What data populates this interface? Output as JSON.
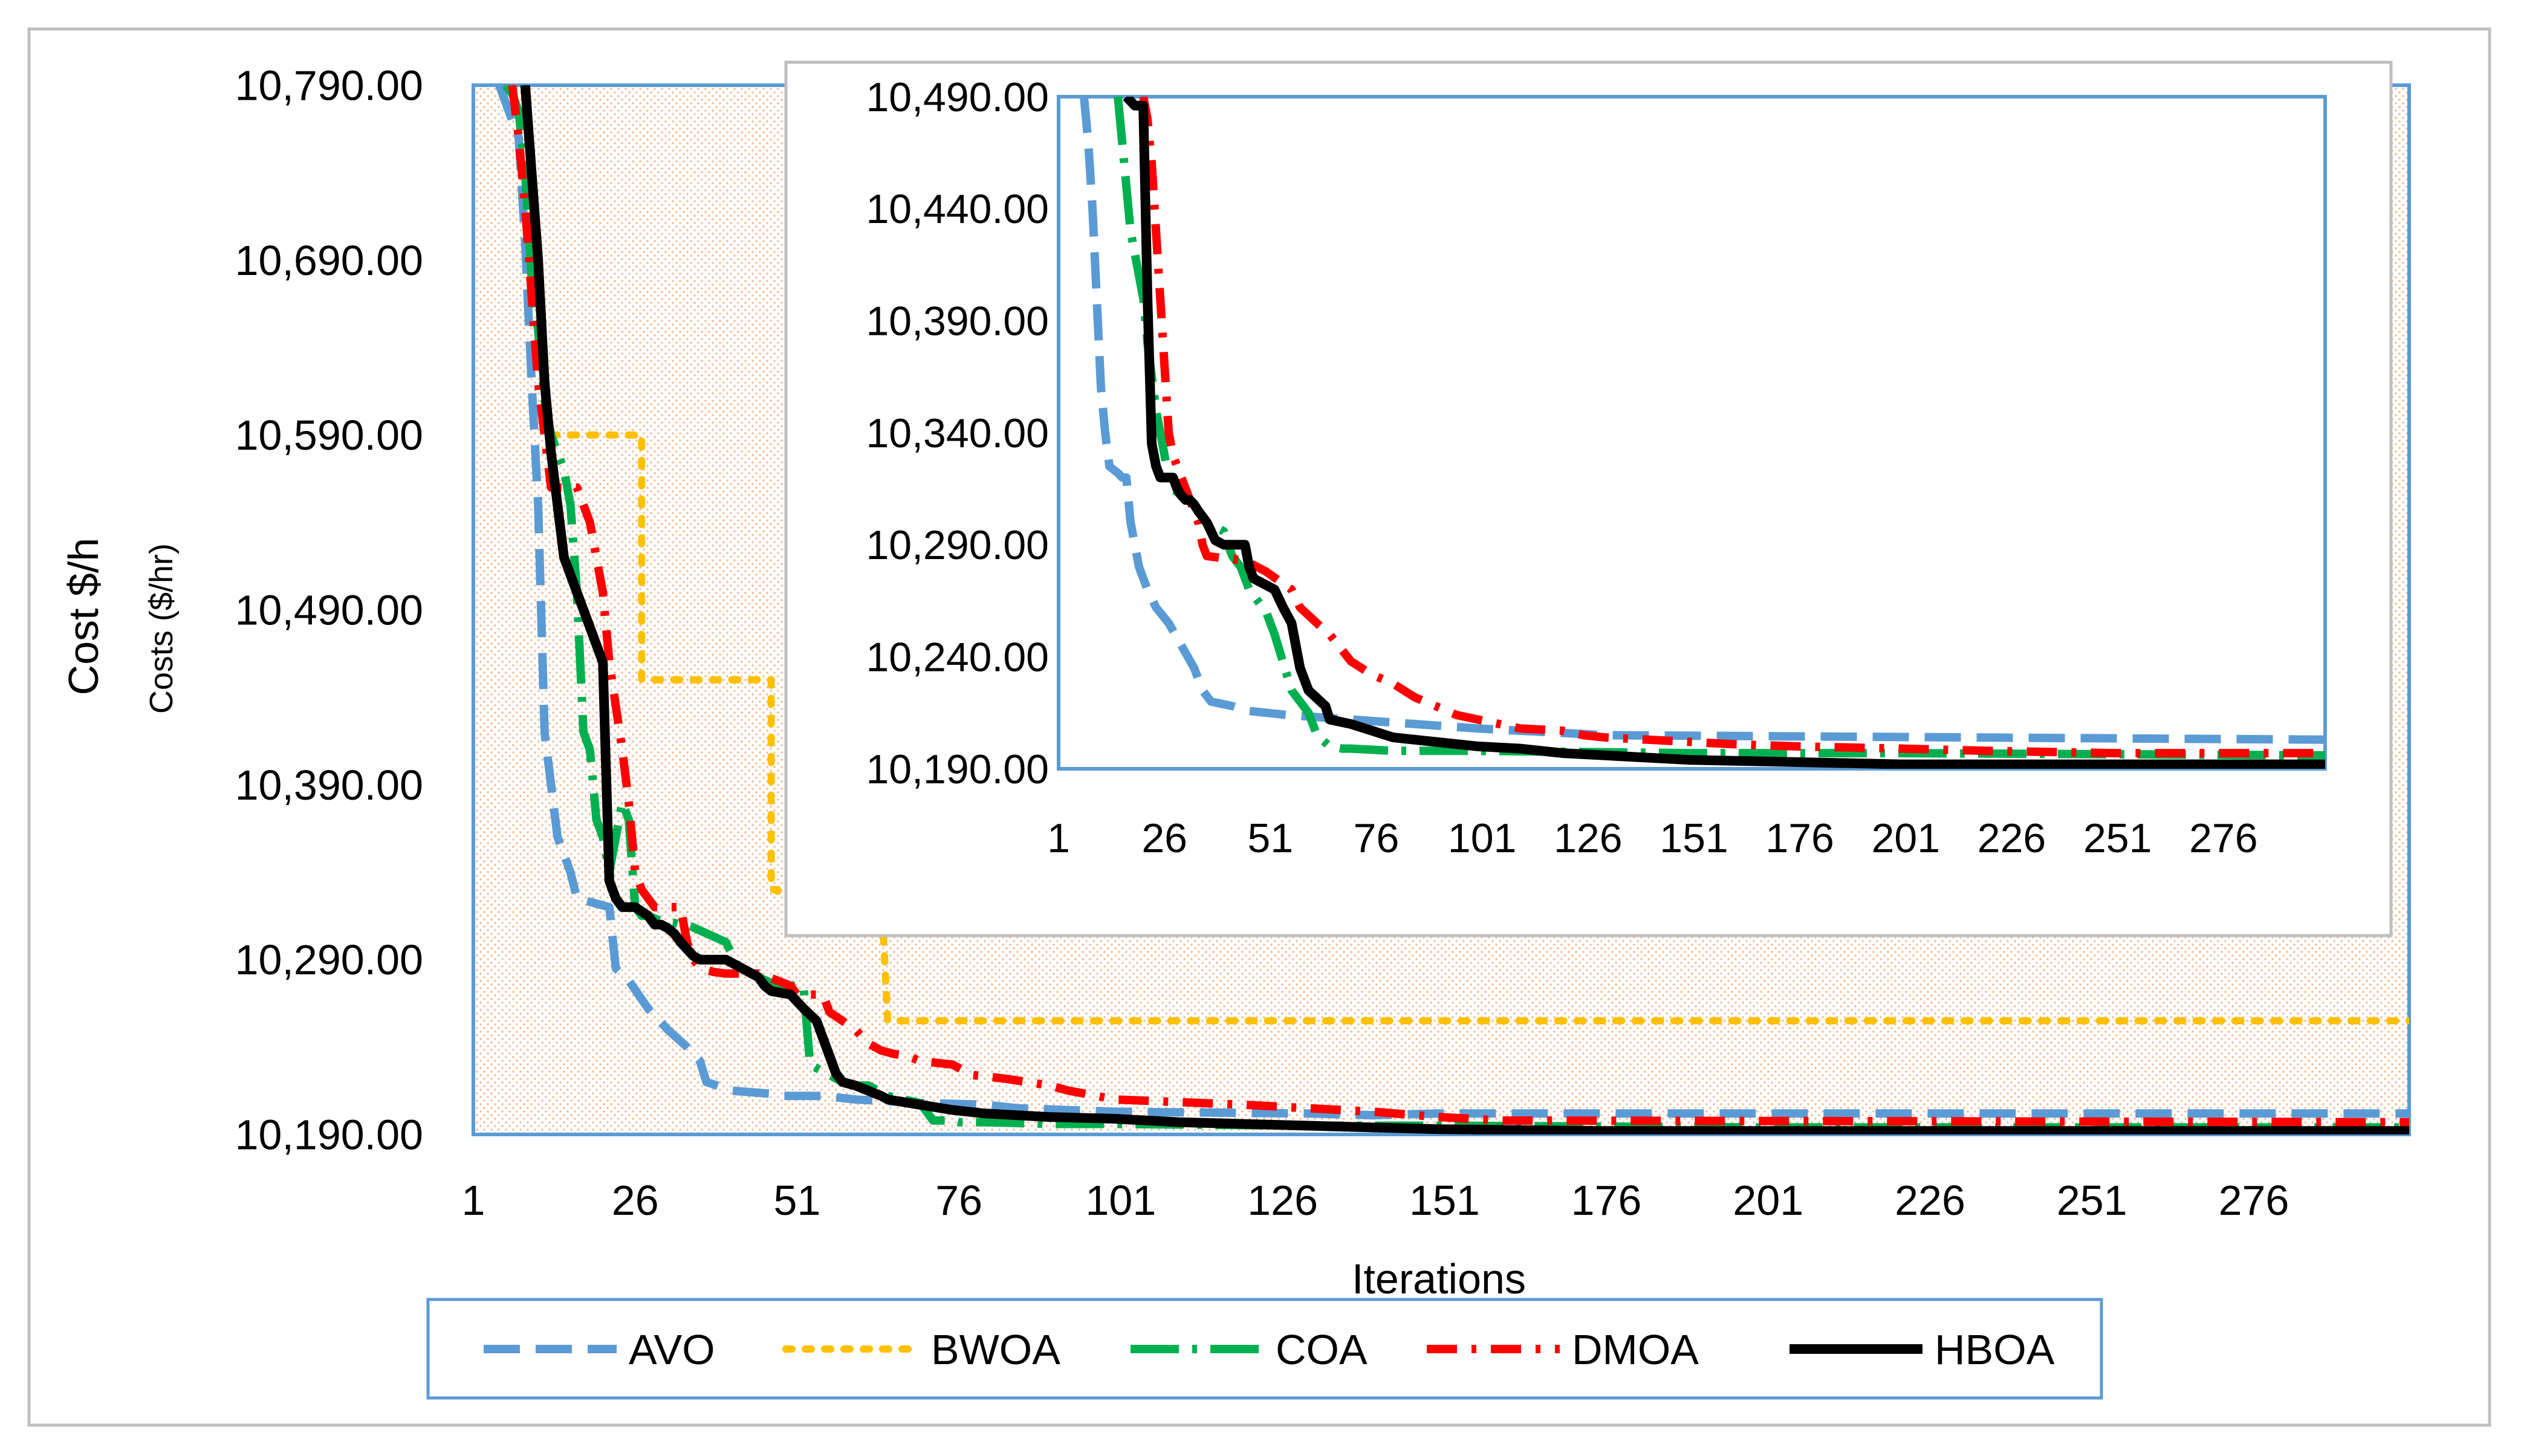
{
  "chart_data": [
    {
      "type": "line",
      "role": "main",
      "title": "",
      "xlabel": "Iterations",
      "ylabel": "Cost $/h",
      "ylabel2": "Costs ($/hr)",
      "xlim": [
        1,
        300
      ],
      "ylim": [
        10190,
        10790
      ],
      "xticks": [
        1,
        26,
        51,
        76,
        101,
        126,
        151,
        176,
        201,
        226,
        251,
        276
      ],
      "xtick_labels": [
        "1",
        "26",
        "51",
        "76",
        "101",
        "126",
        "151",
        "176",
        "201",
        "226",
        "251",
        "276"
      ],
      "yticks": [
        10790,
        10690,
        10590,
        10490,
        10390,
        10290,
        10190
      ],
      "ytick_labels": [
        "10,790.00",
        "10,690.00",
        "10,590.00",
        "10,490.00",
        "10,390.00",
        "10,290.00",
        "10,190.00"
      ],
      "grid": false,
      "legend_position": "bottom",
      "series": [
        {
          "name": "AVO",
          "x": [
            5,
            6,
            8,
            9,
            10,
            11,
            12,
            14,
            16,
            17,
            22,
            23,
            25,
            28,
            31,
            34,
            36,
            37,
            41,
            48,
            49,
            55,
            60,
            65,
            70,
            80,
            85,
            100,
            130,
            140,
            150,
            300
          ],
          "y": [
            10790,
            10780,
            10760,
            10700,
            10620,
            10550,
            10420,
            10360,
            10340,
            10325,
            10320,
            10285,
            10278,
            10262,
            10250,
            10240,
            10232,
            10220,
            10215,
            10213,
            10212,
            10212,
            10210,
            10209,
            10208,
            10207,
            10205,
            10203,
            10202,
            10201,
            10202,
            10202
          ]
        },
        {
          "name": "BWOA",
          "x": [
            13,
            14,
            27,
            27,
            47,
            47,
            48,
            48,
            64,
            65,
            65,
            300
          ],
          "y": [
            10590,
            10590,
            10590,
            10450,
            10450,
            10330,
            10330,
            10328,
            10328,
            10255,
            10255,
            10255
          ]
        },
        {
          "name": "COA",
          "x": [
            6,
            7,
            8,
            9,
            10,
            11,
            12,
            13,
            14,
            15,
            16,
            17,
            18,
            19,
            20,
            21,
            22,
            24,
            25,
            26,
            27,
            28,
            30,
            32,
            33,
            34,
            40,
            42,
            45,
            48,
            52,
            53,
            58,
            60,
            62,
            65,
            70,
            72,
            75,
            76,
            80,
            90,
            100,
            130,
            150,
            200,
            300
          ],
          "y": [
            10790,
            10785,
            10775,
            10740,
            10680,
            10650,
            10610,
            10590,
            10580,
            10570,
            10550,
            10500,
            10420,
            10410,
            10370,
            10360,
            10340,
            10380,
            10370,
            10320,
            10315,
            10315,
            10312,
            10311,
            10310,
            10310,
            10300,
            10285,
            10280,
            10275,
            10275,
            10230,
            10220,
            10218,
            10218,
            10212,
            10208,
            10198,
            10198,
            10197,
            10197,
            10196,
            10196,
            10195,
            10195,
            10194,
            10194
          ]
        },
        {
          "name": "DMOA",
          "x": [
            7,
            8,
            9,
            10,
            11,
            12,
            13,
            17,
            18,
            19,
            20,
            21,
            22,
            24,
            25,
            26,
            27,
            29,
            33,
            34,
            35,
            36,
            37,
            38,
            40,
            45,
            48,
            50,
            51,
            55,
            56,
            58,
            60,
            62,
            64,
            66,
            68,
            70,
            75,
            78,
            83,
            90,
            93,
            96,
            100,
            120,
            140,
            150,
            160,
            300
          ],
          "y": [
            10790,
            10760,
            10720,
            10670,
            10620,
            10590,
            10560,
            10560,
            10550,
            10540,
            10520,
            10500,
            10460,
            10410,
            10380,
            10340,
            10330,
            10320,
            10320,
            10300,
            10290,
            10285,
            10284,
            10283,
            10282,
            10282,
            10278,
            10275,
            10270,
            10270,
            10260,
            10255,
            10250,
            10242,
            10238,
            10236,
            10235,
            10232,
            10230,
            10224,
            10222,
            10218,
            10215,
            10213,
            10210,
            10207,
            10203,
            10200,
            10198,
            10197
          ]
        },
        {
          "name": "HBOA",
          "x": [
            9,
            10,
            11,
            12,
            13,
            14,
            15,
            16,
            17,
            18,
            19,
            20,
            21,
            22,
            23,
            24,
            25,
            26,
            28,
            29,
            30,
            31,
            32,
            33,
            34,
            35,
            36,
            40,
            45,
            46,
            47,
            50,
            52,
            54,
            55,
            56,
            57,
            58,
            60,
            64,
            65,
            70,
            75,
            80,
            90,
            100,
            110,
            120,
            130,
            150,
            175,
            200,
            300
          ],
          "y": [
            10790,
            10740,
            10690,
            10620,
            10580,
            10550,
            10520,
            10510,
            10500,
            10490,
            10480,
            10470,
            10460,
            10335,
            10325,
            10320,
            10320,
            10320,
            10315,
            10310,
            10310,
            10308,
            10305,
            10300,
            10296,
            10292,
            10290,
            10290,
            10280,
            10275,
            10272,
            10270,
            10262,
            10255,
            10245,
            10235,
            10225,
            10220,
            10218,
            10212,
            10210,
            10207,
            10204,
            10202,
            10200,
            10199,
            10197,
            10196,
            10195,
            10193,
            10192,
            10192,
            10192
          ]
        }
      ]
    },
    {
      "type": "line",
      "role": "inset",
      "title": "",
      "xlim": [
        1,
        300
      ],
      "ylim": [
        10190,
        10490
      ],
      "xticks": [
        1,
        26,
        51,
        76,
        101,
        126,
        151,
        176,
        201,
        226,
        251,
        276
      ],
      "xtick_labels": [
        "1",
        "26",
        "51",
        "76",
        "101",
        "126",
        "151",
        "176",
        "201",
        "226",
        "251",
        "276"
      ],
      "yticks": [
        10490,
        10440,
        10390,
        10340,
        10290,
        10240,
        10190
      ],
      "ytick_labels": [
        "10,490.00",
        "10,440.00",
        "10,390.00",
        "10,340.00",
        "10,290.00",
        "10,240.00",
        "10,190.00"
      ],
      "grid": false,
      "series": [
        {
          "name": "AVO",
          "x": [
            7,
            8,
            9,
            10,
            11,
            12,
            13,
            15,
            16,
            17,
            18,
            20,
            22,
            24,
            27,
            30,
            33,
            35,
            37,
            42,
            45,
            55,
            70,
            100,
            130,
            300
          ],
          "y": [
            10490,
            10470,
            10440,
            10400,
            10360,
            10340,
            10325,
            10322,
            10320,
            10320,
            10300,
            10280,
            10270,
            10262,
            10255,
            10245,
            10235,
            10225,
            10220,
            10218,
            10216,
            10214,
            10212,
            10208,
            10205,
            10203
          ]
        },
        {
          "name": "COA",
          "x": [
            15,
            16,
            17,
            18,
            19,
            20,
            21,
            22,
            24,
            25,
            26,
            27,
            28,
            30,
            31,
            32,
            34,
            36,
            40,
            41,
            42,
            44,
            45,
            46,
            48,
            50,
            52,
            56,
            60,
            62,
            65,
            68,
            70,
            80,
            100,
            150,
            200,
            300
          ],
          "y": [
            10490,
            10470,
            10450,
            10430,
            10420,
            10410,
            10400,
            10380,
            10350,
            10340,
            10330,
            10320,
            10315,
            10312,
            10311,
            10310,
            10305,
            10300,
            10296,
            10290,
            10285,
            10280,
            10275,
            10270,
            10265,
            10260,
            10250,
            10225,
            10215,
            10205,
            10200,
            10199,
            10199,
            10198,
            10198,
            10197,
            10197,
            10196
          ]
        },
        {
          "name": "DMOA",
          "x": [
            21,
            22,
            23,
            24,
            25,
            26,
            27,
            28,
            30,
            34,
            35,
            36,
            40,
            45,
            48,
            50,
            56,
            58,
            62,
            65,
            70,
            75,
            80,
            85,
            90,
            95,
            100,
            105,
            110,
            120,
            125,
            130,
            140,
            150,
            160,
            175,
            200,
            220,
            250,
            300
          ],
          "y": [
            10490,
            10480,
            10460,
            10430,
            10400,
            10370,
            10340,
            10330,
            10320,
            10300,
            10290,
            10285,
            10284,
            10283,
            10280,
            10278,
            10270,
            10262,
            10255,
            10250,
            10238,
            10232,
            10228,
            10222,
            10218,
            10214,
            10212,
            10210,
            10208,
            10207,
            10205,
            10204,
            10203,
            10202,
            10201,
            10200,
            10199,
            10198,
            10197,
            10197
          ]
        },
        {
          "name": "HBOA",
          "x": [
            17,
            18,
            19,
            20,
            21,
            22,
            23,
            24,
            25,
            26,
            28,
            29,
            30,
            31,
            32,
            33,
            34,
            36,
            37,
            38,
            40,
            45,
            46,
            47,
            50,
            52,
            54,
            56,
            57,
            58,
            60,
            64,
            65,
            70,
            75,
            80,
            90,
            100,
            110,
            120,
            130,
            150,
            175,
            200,
            300
          ],
          "y": [
            10490,
            10488,
            10486,
            10486,
            10486,
            10400,
            10335,
            10325,
            10320,
            10320,
            10320,
            10315,
            10312,
            10310,
            10310,
            10308,
            10305,
            10300,
            10296,
            10292,
            10290,
            10290,
            10280,
            10275,
            10272,
            10270,
            10262,
            10255,
            10245,
            10235,
            10225,
            10218,
            10212,
            10210,
            10207,
            10204,
            10202,
            10200,
            10199,
            10197,
            10196,
            10194,
            10193,
            10192,
            10192
          ]
        }
      ]
    }
  ],
  "legend": {
    "items": [
      {
        "name": "AVO",
        "label": "AVO",
        "color": "#5B9BD5",
        "dash": "dash"
      },
      {
        "name": "BWOA",
        "label": "BWOA",
        "color": "#FFC000",
        "dash": "dot"
      },
      {
        "name": "COA",
        "label": "COA",
        "color": "#00B050",
        "dash": "longdashdot"
      },
      {
        "name": "DMOA",
        "label": "DMOA",
        "color": "#FF0000",
        "dash": "dashdot"
      },
      {
        "name": "HBOA",
        "label": "HBOA",
        "color": "#000000",
        "dash": "solid"
      }
    ]
  },
  "colors": {
    "frame": "#5B9BD5",
    "outer_border": "#BFBFBF",
    "plot_background_dots": "#F8CBAD"
  }
}
